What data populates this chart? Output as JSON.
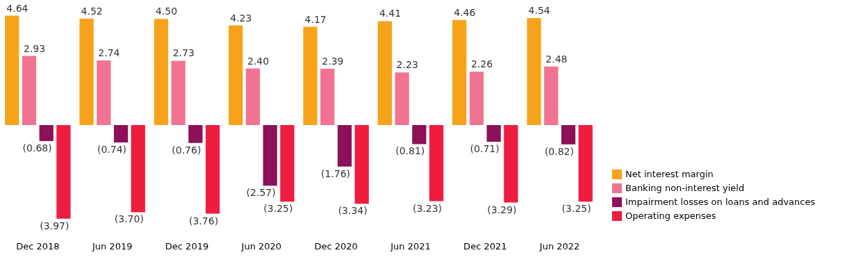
{
  "chart_data": {
    "type": "bar",
    "categories": [
      "Dec 2018",
      "Jun 2019",
      "Dec 2019",
      "Jun 2020",
      "Dec 2020",
      "Jun 2021",
      "Dec 2021",
      "Jun 2022"
    ],
    "series": [
      {
        "name": "Net interest margin",
        "color": "#f6a31b",
        "values": [
          4.64,
          4.52,
          4.5,
          4.23,
          4.17,
          4.41,
          4.46,
          4.54
        ],
        "value_labels": [
          "4.64",
          "4.52",
          "4.50",
          "4.23",
          "4.17",
          "4.41",
          "4.46",
          "4.54"
        ]
      },
      {
        "name": "Banking non-interest yield",
        "color": "#f07492",
        "values": [
          2.93,
          2.74,
          2.73,
          2.4,
          2.39,
          2.23,
          2.26,
          2.48
        ],
        "value_labels": [
          "2.93",
          "2.74",
          "2.73",
          "2.40",
          "2.39",
          "2.23",
          "2.26",
          "2.48"
        ]
      },
      {
        "name": "Impairment losses on loans and advances",
        "color": "#8c1157",
        "values": [
          -0.68,
          -0.74,
          -0.76,
          -2.57,
          -1.76,
          -0.81,
          -0.71,
          -0.82
        ],
        "value_labels": [
          "(0.68)",
          "(0.74)",
          "(0.76)",
          "(2.57)",
          "(1.76)",
          "(0.81)",
          "(0.71)",
          "(0.82)"
        ]
      },
      {
        "name": "Operating expenses",
        "color": "#ee1d3f",
        "values": [
          -3.97,
          -3.7,
          -3.76,
          -3.25,
          -3.34,
          -3.23,
          -3.29,
          -3.25
        ],
        "value_labels": [
          "(3.97)",
          "(3.70)",
          "(3.76)",
          "(3.25)",
          "(3.34)",
          "(3.23)",
          "(3.29)",
          "(3.25)"
        ]
      }
    ],
    "legend": "bottom right",
    "grid": false
  }
}
